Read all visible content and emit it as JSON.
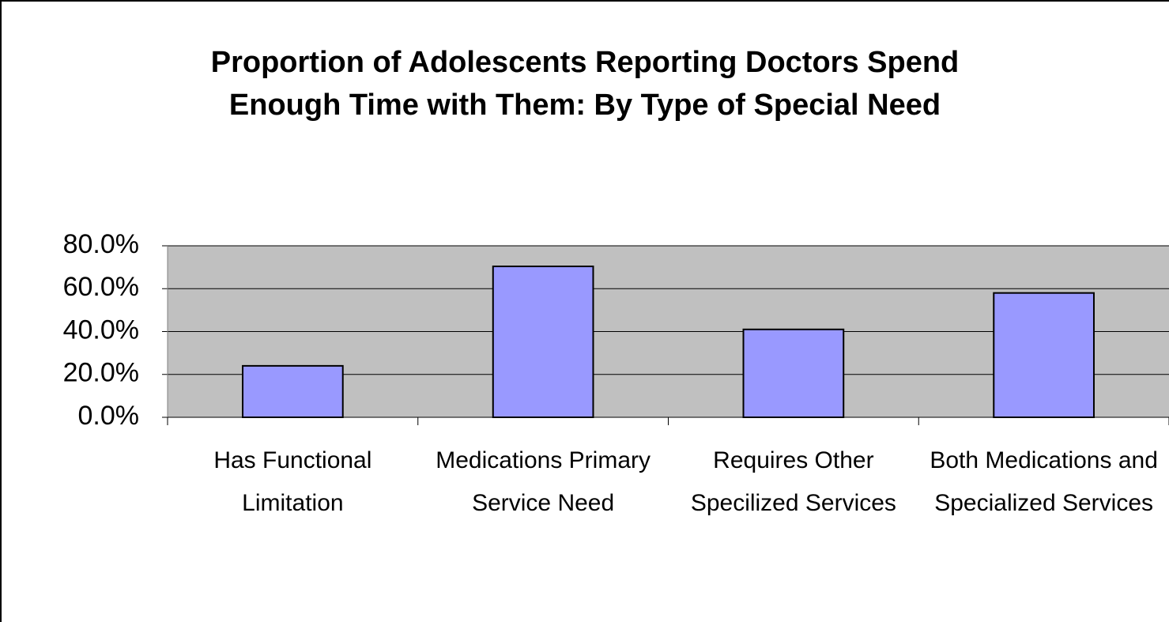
{
  "chart_data": {
    "type": "bar",
    "title": "Proportion of Adolescents Reporting Doctors Spend Enough Time with Them: By Type of Special Need",
    "categories": [
      "Has Functional Limitation",
      "Medications Primary Service Need",
      "Requires Other Specilized Services",
      "Both Medications and Specialized Services"
    ],
    "values": [
      24,
      70.4,
      41,
      58
    ],
    "color": "#9999ff",
    "ylim": [
      0,
      80
    ],
    "yticks": [
      {
        "value": 0,
        "label": "0.0%"
      },
      {
        "value": 20,
        "label": "20.0%"
      },
      {
        "value": 40,
        "label": "40.0%"
      },
      {
        "value": 60,
        "label": "60.0%"
      },
      {
        "value": 80,
        "label": "80.0%"
      }
    ],
    "grid": true
  }
}
